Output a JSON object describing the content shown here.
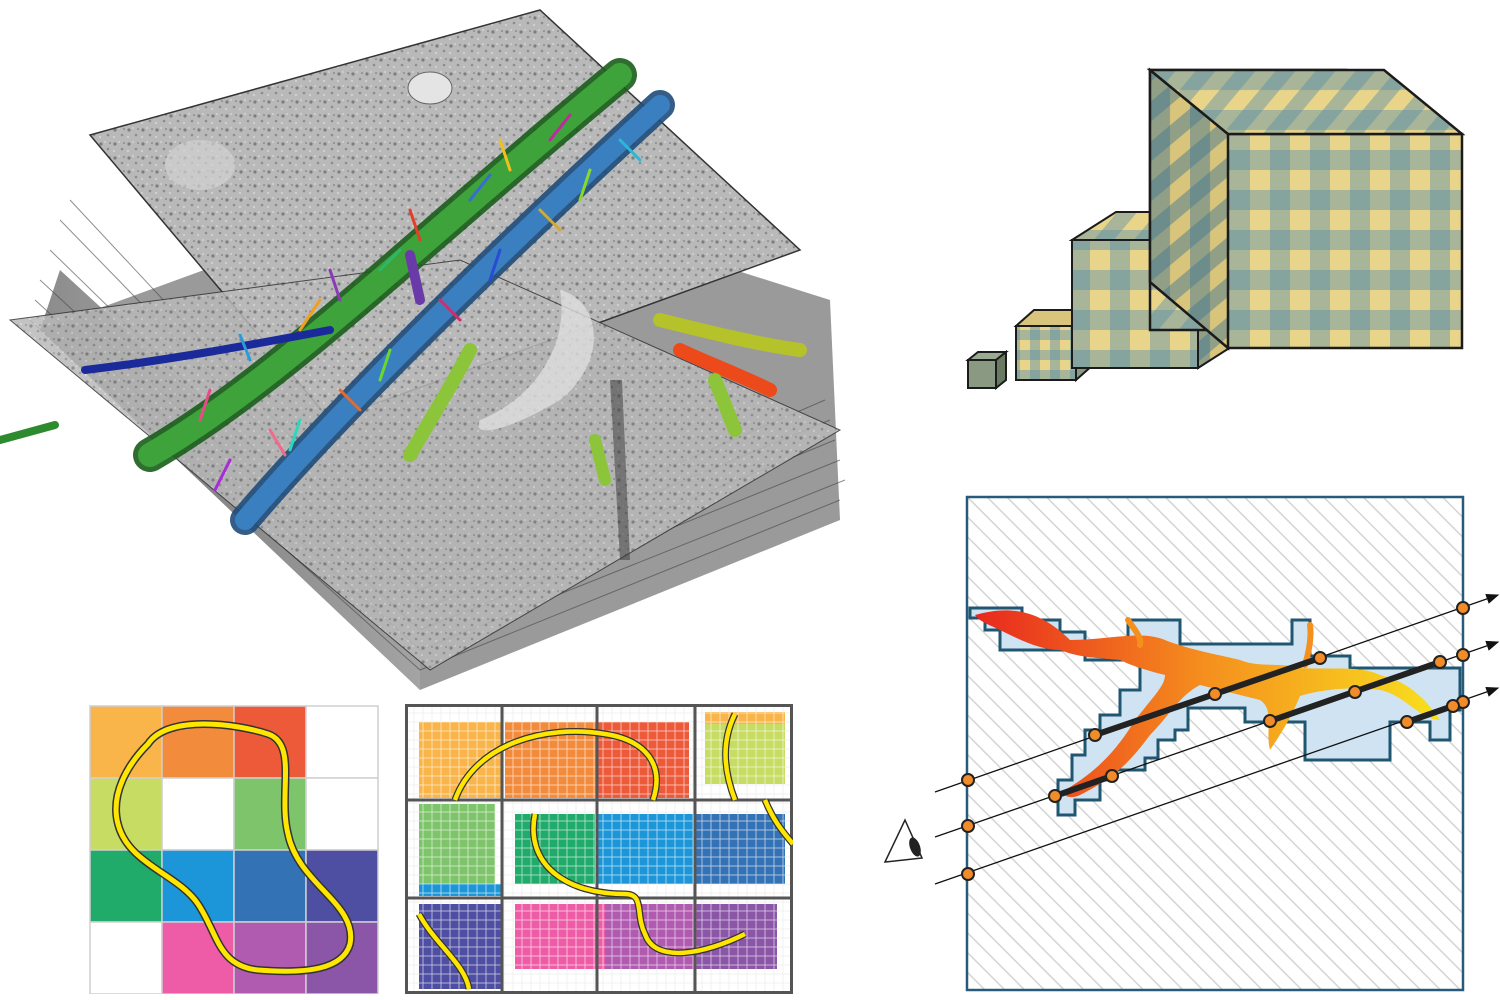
{
  "figure": {
    "panels": [
      {
        "id": "em-volume",
        "kind": "stacked electron-microscopy slices with colored neuron segmentations"
      },
      {
        "id": "multiresolution-cubes",
        "kind": "four cubes of increasing size with checkered bricks"
      },
      {
        "id": "coarse-grid",
        "kind": "4x4 colored block grid with yellow contour"
      },
      {
        "id": "fine-grid",
        "kind": "sparse subdivided colored grid with yellow contour"
      },
      {
        "id": "ray-casting",
        "kind": "ray casting through voxelized dendrite with eye"
      }
    ]
  },
  "colors": {
    "cube_yellow": "#e8d58a",
    "cube_blue": "#5b8fa8",
    "cube_outline": "#1b1b1b",
    "contour_yellow": "#ffe600",
    "ray_box_border": "#2a5a7a",
    "sample_point": "#f28c28",
    "dendrite_red": "#e8281e",
    "dendrite_orange": "#f5901e",
    "dendrite_yellow": "#f8c81e",
    "voxel_fill": "#cfe3f2",
    "voxel_border": "#1f5670"
  },
  "coarse_grid": {
    "cells": [
      [
        "#f9b44a",
        "#f38b3c",
        "#ec5a3a",
        "#ffffff"
      ],
      [
        "#c6dc63",
        "#ffffff",
        "#7ec46a",
        "#ffffff"
      ],
      [
        "#21ab6a",
        "#1c96d8",
        "#3472b6",
        "#4e4fa3"
      ],
      [
        "#ffffff",
        "#ee5ca8",
        "#b05ab0",
        "#8b55a8"
      ]
    ]
  },
  "icons": [
    "eye-icon"
  ]
}
